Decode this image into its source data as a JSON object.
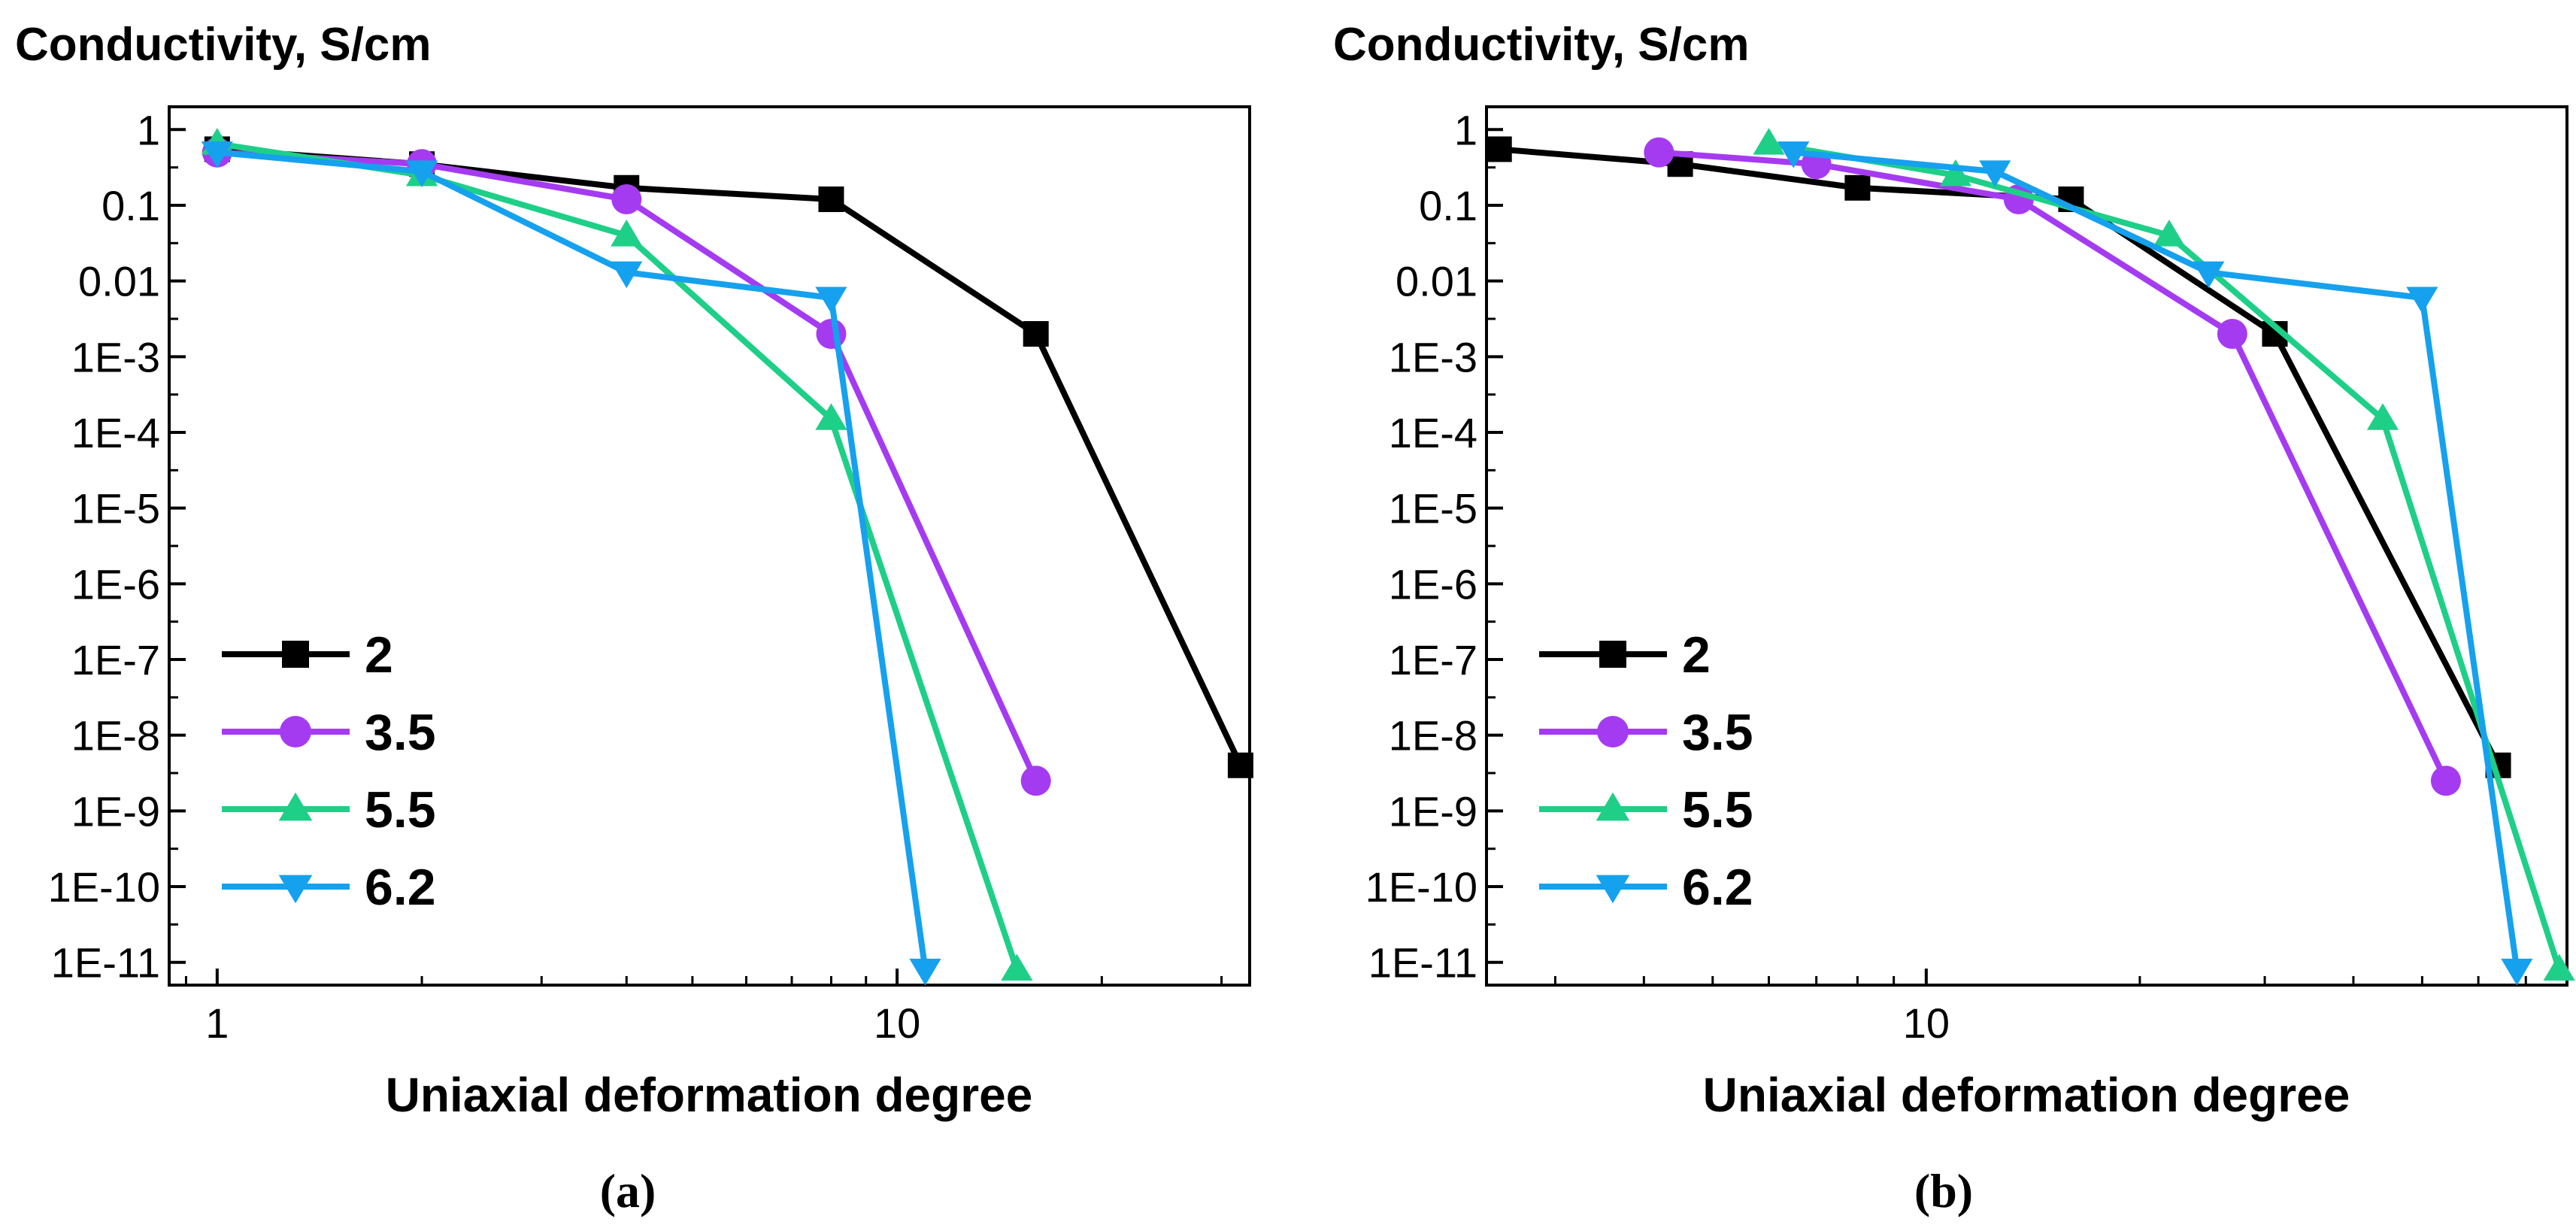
{
  "colors": {
    "s2": "#000000",
    "s35": "#a53bf0",
    "s55": "#1ecf88",
    "s62": "#15a1ee",
    "axis": "#000000"
  },
  "chart_data": [
    {
      "type": "line",
      "panel": "(a)",
      "title": "Conductivity, S/cm",
      "xlabel": "Uniaxial deformation degree",
      "ylabel": "Conductivity, S/cm",
      "xscale": "log",
      "yscale": "log",
      "xlim": [
        0.85,
        33
      ],
      "ylim": [
        5e-12,
        2
      ],
      "xticks": [
        1,
        10
      ],
      "xtick_labels": [
        "1",
        "10"
      ],
      "yticks": [
        1,
        0.1,
        0.01,
        0.001,
        0.0001,
        1e-05,
        1e-06,
        1e-07,
        1e-08,
        1e-09,
        1e-10,
        1e-11
      ],
      "ytick_labels": [
        "1",
        "0.1",
        "0.01",
        "1E-3",
        "1E-4",
        "1E-5",
        "1E-6",
        "1E-7",
        "1E-8",
        "1E-9",
        "1E-10",
        "1E-11"
      ],
      "legend_position": "lower-left",
      "series": [
        {
          "name": "2",
          "marker": "square",
          "color": "#000000",
          "x": [
            1,
            2,
            4,
            8,
            16,
            32
          ],
          "y": [
            0.55,
            0.35,
            0.17,
            0.12,
            0.002,
            4e-09
          ]
        },
        {
          "name": "3.5",
          "marker": "circle",
          "color": "#a53bf0",
          "x": [
            1,
            2,
            4,
            8,
            16
          ],
          "y": [
            0.5,
            0.35,
            0.12,
            0.002,
            2.5e-09
          ]
        },
        {
          "name": "5.5",
          "marker": "triangle-up",
          "color": "#1ecf88",
          "x": [
            1,
            2,
            4,
            8,
            15
          ],
          "y": [
            0.65,
            0.25,
            0.04,
            0.00015,
            8e-12
          ]
        },
        {
          "name": "6.2",
          "marker": "triangle-down",
          "color": "#15a1ee",
          "x": [
            1,
            2,
            4,
            8,
            11
          ],
          "y": [
            0.5,
            0.28,
            0.013,
            0.006,
            8e-12
          ]
        }
      ]
    },
    {
      "type": "line",
      "panel": "(b)",
      "title": "Conductivity, S/cm",
      "xlabel": "Uniaxial deformation degree",
      "ylabel": "Conductivity, S/cm",
      "xscale": "log",
      "yscale": "log",
      "xlim": [
        2.4,
        80
      ],
      "ylim": [
        5e-12,
        2
      ],
      "xticks": [
        10
      ],
      "xtick_labels": [
        "10"
      ],
      "yticks": [
        1,
        0.1,
        0.01,
        0.001,
        0.0001,
        1e-05,
        1e-06,
        1e-07,
        1e-08,
        1e-09,
        1e-10,
        1e-11
      ],
      "ytick_labels": [
        "1",
        "0.1",
        "0.01",
        "1E-3",
        "1E-4",
        "1E-5",
        "1E-6",
        "1E-7",
        "1E-8",
        "1E-9",
        "1E-10",
        "1E-11"
      ],
      "legend_position": "lower-left",
      "series": [
        {
          "name": "2",
          "marker": "square",
          "color": "#000000",
          "x": [
            2.5,
            4.5,
            8,
            16,
            31,
            64
          ],
          "y": [
            0.55,
            0.35,
            0.17,
            0.12,
            0.002,
            4e-09
          ]
        },
        {
          "name": "3.5",
          "marker": "circle",
          "color": "#a53bf0",
          "x": [
            4.2,
            7,
            13.5,
            27,
            54
          ],
          "y": [
            0.5,
            0.35,
            0.12,
            0.002,
            2.5e-09
          ]
        },
        {
          "name": "5.5",
          "marker": "triangle-up",
          "color": "#1ecf88",
          "x": [
            6,
            11,
            22,
            44,
            78
          ],
          "y": [
            0.65,
            0.25,
            0.04,
            0.00015,
            8e-12
          ]
        },
        {
          "name": "6.2",
          "marker": "triangle-down",
          "color": "#15a1ee",
          "x": [
            6.5,
            12.5,
            25,
            50,
            68
          ],
          "y": [
            0.5,
            0.28,
            0.013,
            0.006,
            8e-12
          ]
        }
      ]
    }
  ]
}
